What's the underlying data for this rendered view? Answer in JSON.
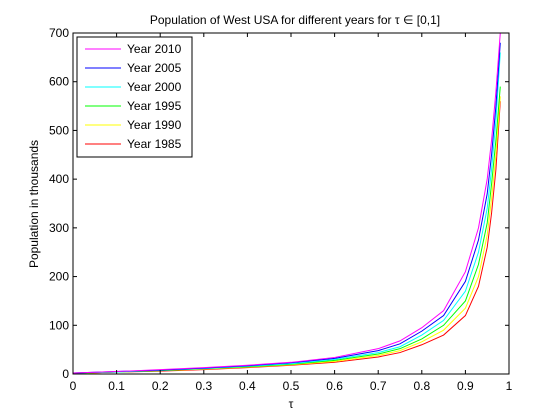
{
  "chart_data": {
    "type": "line",
    "title": "Population of West USA for different years for τ ∈ [0,1]",
    "xlabel": "τ",
    "ylabel": "Population in thousands",
    "xlim": [
      0,
      1
    ],
    "ylim": [
      0,
      700
    ],
    "xticks": [
      "0",
      "0.1",
      "0.2",
      "0.3",
      "0.4",
      "0.5",
      "0.6",
      "0.7",
      "0.8",
      "0.9",
      "1"
    ],
    "xtick_values": [
      0,
      0.1,
      0.2,
      0.3,
      0.4,
      0.5,
      0.6,
      0.7,
      0.8,
      0.9,
      1.0
    ],
    "yticks": [
      "0",
      "100",
      "200",
      "300",
      "400",
      "500",
      "600",
      "700"
    ],
    "ytick_values": [
      0,
      100,
      200,
      300,
      400,
      500,
      600,
      700
    ],
    "grid": false,
    "legend_position": "top-left",
    "x": [
      0,
      0.1,
      0.2,
      0.3,
      0.4,
      0.5,
      0.6,
      0.7,
      0.75,
      0.8,
      0.85,
      0.9,
      0.93,
      0.95,
      0.96,
      0.97,
      0.98
    ],
    "series": [
      {
        "name": "Year 2010",
        "color": "#ff00ff",
        "values": [
          2,
          5,
          9,
          13,
          18,
          24,
          34,
          52,
          68,
          95,
          130,
          210,
          300,
          400,
          480,
          580,
          700
        ]
      },
      {
        "name": "Year 2005",
        "color": "#0000ff",
        "values": [
          2,
          5,
          8,
          12,
          17,
          23,
          32,
          48,
          62,
          88,
          120,
          190,
          275,
          370,
          450,
          550,
          680
        ]
      },
      {
        "name": "Year 2000",
        "color": "#00ffff",
        "values": [
          2,
          4,
          8,
          11,
          16,
          21,
          30,
          44,
          56,
          80,
          110,
          170,
          250,
          340,
          420,
          520,
          660
        ]
      },
      {
        "name": "Year 1995",
        "color": "#00ff00",
        "values": [
          2,
          4,
          7,
          11,
          15,
          20,
          28,
          41,
          52,
          72,
          100,
          150,
          225,
          310,
          390,
          480,
          590
        ]
      },
      {
        "name": "Year 1990",
        "color": "#ffff00",
        "values": [
          1,
          4,
          7,
          10,
          14,
          19,
          26,
          38,
          48,
          66,
          90,
          135,
          200,
          285,
          360,
          450,
          570
        ]
      },
      {
        "name": "Year 1985",
        "color": "#ff0000",
        "values": [
          1,
          4,
          6,
          9,
          13,
          18,
          24,
          35,
          44,
          60,
          80,
          120,
          180,
          260,
          330,
          420,
          560
        ]
      }
    ]
  }
}
